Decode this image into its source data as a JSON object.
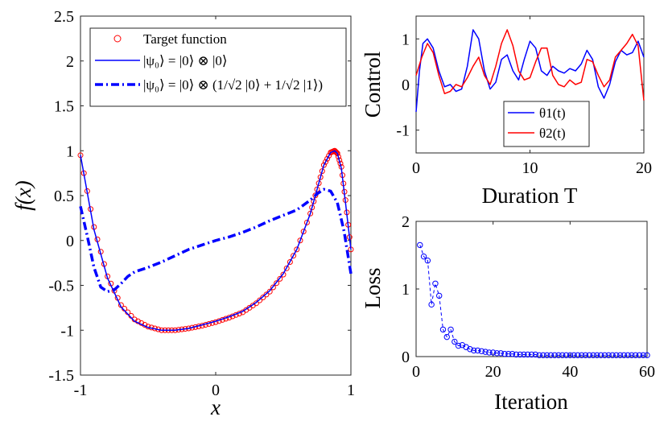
{
  "chart_data": [
    {
      "type": "line",
      "xlabel": "x",
      "ylabel": "f(x)",
      "xlim": [
        -1,
        1
      ],
      "ylim": [
        -1.5,
        2.5
      ],
      "xticks": [
        -1,
        0,
        1
      ],
      "yticks": [
        2.5,
        2,
        1.5,
        1,
        0.5,
        0,
        -0.5,
        -1,
        -1.5
      ],
      "ytick_labels": [
        "2.5",
        "2",
        "1.5",
        "1",
        "0.5",
        "0",
        "-0.5",
        "-1",
        "-1.5"
      ],
      "xtick_labels": [
        "-1",
        "0",
        "1"
      ],
      "legend_position": "top-left",
      "series": [
        {
          "name": "Target function",
          "style": "circle-markers",
          "color": "#ff0000",
          "x": [
            -1,
            -0.9,
            -0.8,
            -0.7,
            -0.6,
            -0.5,
            -0.4,
            -0.3,
            -0.2,
            -0.1,
            0,
            0.1,
            0.2,
            0.3,
            0.4,
            0.5,
            0.6,
            0.7,
            0.75,
            0.8,
            0.85,
            0.88,
            0.9,
            0.93,
            0.96,
            1
          ],
          "y": [
            0.95,
            0.15,
            -0.4,
            -0.72,
            -0.88,
            -0.96,
            -1.0,
            -1.0,
            -0.98,
            -0.95,
            -0.91,
            -0.86,
            -0.8,
            -0.7,
            -0.57,
            -0.38,
            -0.1,
            0.3,
            0.57,
            0.84,
            0.98,
            1.0,
            0.97,
            0.82,
            0.45,
            -0.1
          ]
        },
        {
          "name": "|ψ₀⟩ = |0⟩ ⊗ |0⟩",
          "style": "solid",
          "color": "#0000ff",
          "x": [
            -1,
            -0.9,
            -0.8,
            -0.7,
            -0.6,
            -0.5,
            -0.4,
            -0.3,
            -0.2,
            -0.1,
            0,
            0.1,
            0.2,
            0.3,
            0.4,
            0.5,
            0.6,
            0.7,
            0.75,
            0.8,
            0.85,
            0.88,
            0.9,
            0.93,
            0.96,
            1
          ],
          "y": [
            0.95,
            0.12,
            -0.42,
            -0.74,
            -0.9,
            -0.97,
            -1.0,
            -1.0,
            -0.98,
            -0.94,
            -0.9,
            -0.85,
            -0.79,
            -0.69,
            -0.56,
            -0.37,
            -0.1,
            0.3,
            0.57,
            0.84,
            0.98,
            1.0,
            0.97,
            0.8,
            0.42,
            -0.1
          ]
        },
        {
          "name": "|ψ₀⟩ = |0⟩ ⊗ (1/√2 |0⟩ + 1/√2 |1⟩)",
          "style": "dash-dot",
          "color": "#0000ff",
          "x": [
            -1,
            -0.95,
            -0.9,
            -0.85,
            -0.8,
            -0.75,
            -0.7,
            -0.65,
            -0.6,
            -0.5,
            -0.4,
            -0.3,
            -0.2,
            -0.1,
            0,
            0.1,
            0.2,
            0.3,
            0.4,
            0.5,
            0.6,
            0.7,
            0.75,
            0.8,
            0.85,
            0.9,
            0.95,
            1
          ],
          "y": [
            0.38,
            0.05,
            -0.3,
            -0.52,
            -0.57,
            -0.55,
            -0.48,
            -0.4,
            -0.35,
            -0.3,
            -0.24,
            -0.17,
            -0.1,
            -0.05,
            0,
            0.04,
            0.09,
            0.15,
            0.22,
            0.28,
            0.34,
            0.45,
            0.52,
            0.57,
            0.55,
            0.42,
            0.1,
            -0.37
          ]
        }
      ]
    },
    {
      "type": "line",
      "xlabel": "Duration T",
      "ylabel": "Control",
      "xlim": [
        0,
        20
      ],
      "ylim": [
        -1.5,
        1.5
      ],
      "xticks": [
        0,
        10,
        20
      ],
      "yticks": [
        1,
        0,
        -1
      ],
      "ytick_labels": [
        "1",
        "0",
        "-1"
      ],
      "xtick_labels": [
        "0",
        "10",
        "20"
      ],
      "legend_position": "bottom-center",
      "series": [
        {
          "name": "θ1(t)",
          "color": "#0000ff",
          "x": [
            0,
            0.3,
            0.6,
            1.0,
            1.5,
            2.0,
            2.5,
            3.0,
            3.5,
            4.0,
            4.5,
            5.0,
            5.5,
            6.0,
            6.5,
            7.0,
            7.5,
            8.0,
            8.5,
            9.0,
            9.5,
            10.0,
            10.5,
            11.0,
            11.5,
            12.0,
            12.5,
            13.0,
            13.5,
            14.0,
            14.5,
            15.0,
            15.5,
            16.0,
            16.5,
            17.0,
            17.5,
            18.0,
            18.5,
            19.0,
            19.5,
            20.0
          ],
          "y": [
            -0.6,
            0.3,
            0.9,
            1.0,
            0.8,
            0.3,
            -0.05,
            0.0,
            -0.15,
            -0.1,
            0.4,
            1.2,
            1.0,
            0.3,
            -0.1,
            0.05,
            0.55,
            0.65,
            0.3,
            0.1,
            0.55,
            0.95,
            0.8,
            0.3,
            0.2,
            0.4,
            0.3,
            0.25,
            0.35,
            0.3,
            0.45,
            0.75,
            0.55,
            -0.05,
            -0.3,
            0.0,
            0.5,
            0.75,
            0.65,
            0.7,
            0.95,
            0.6
          ]
        },
        {
          "name": "θ2(t)",
          "color": "#ff0000",
          "x": [
            0,
            0.5,
            1.0,
            1.5,
            2.0,
            2.5,
            3.0,
            3.5,
            4.0,
            4.5,
            5.0,
            5.5,
            6.0,
            6.5,
            7.0,
            7.5,
            8.0,
            8.5,
            9.0,
            9.5,
            10.0,
            10.5,
            11.0,
            11.5,
            12.0,
            12.5,
            13.0,
            13.5,
            14.0,
            14.5,
            15.0,
            15.5,
            16.0,
            16.5,
            17.0,
            17.5,
            18.0,
            18.5,
            19.0,
            19.5,
            20.0
          ],
          "y": [
            0.2,
            0.6,
            0.9,
            0.7,
            0.2,
            -0.2,
            -0.15,
            0.0,
            -0.05,
            0.15,
            0.4,
            0.6,
            0.2,
            0.0,
            0.4,
            0.9,
            1.2,
            0.85,
            0.3,
            0.1,
            0.15,
            0.5,
            0.8,
            0.8,
            0.2,
            0.0,
            -0.05,
            0.1,
            0.0,
            0.05,
            0.55,
            0.5,
            0.2,
            -0.05,
            0.1,
            0.6,
            0.75,
            0.9,
            1.1,
            0.85,
            -0.35
          ]
        }
      ]
    },
    {
      "type": "line",
      "xlabel": "Iteration",
      "ylabel": "Loss",
      "xlim": [
        0,
        60
      ],
      "ylim": [
        0,
        2
      ],
      "xticks": [
        0,
        20,
        40,
        60
      ],
      "yticks": [
        2,
        1,
        0
      ],
      "ytick_labels": [
        "2",
        "1",
        "0"
      ],
      "xtick_labels": [
        "0",
        "20",
        "40",
        "60"
      ],
      "series": [
        {
          "style": "dashed-with-circles",
          "color": "#0000ff",
          "x": [
            1,
            2,
            3,
            4,
            5,
            6,
            7,
            8,
            9,
            10,
            11,
            12,
            13,
            14,
            15,
            16,
            17,
            18,
            19,
            20,
            21,
            22,
            23,
            24,
            25,
            26,
            27,
            28,
            29,
            30,
            31,
            32,
            33,
            34,
            35,
            36,
            37,
            38,
            39,
            40,
            41,
            42,
            43,
            44,
            45,
            46,
            47,
            48,
            49,
            50,
            51,
            52,
            53,
            54,
            55,
            56,
            57,
            58,
            59,
            60
          ],
          "y": [
            1.65,
            1.48,
            1.42,
            0.77,
            1.08,
            0.9,
            0.4,
            0.29,
            0.4,
            0.22,
            0.16,
            0.17,
            0.14,
            0.11,
            0.09,
            0.09,
            0.08,
            0.07,
            0.06,
            0.06,
            0.05,
            0.05,
            0.04,
            0.04,
            0.04,
            0.03,
            0.03,
            0.03,
            0.03,
            0.03,
            0.03,
            0.02,
            0.02,
            0.02,
            0.02,
            0.02,
            0.02,
            0.02,
            0.02,
            0.02,
            0.02,
            0.02,
            0.02,
            0.02,
            0.02,
            0.02,
            0.02,
            0.02,
            0.02,
            0.02,
            0.02,
            0.02,
            0.02,
            0.02,
            0.02,
            0.02,
            0.02,
            0.02,
            0.02,
            0.02
          ]
        }
      ]
    }
  ]
}
